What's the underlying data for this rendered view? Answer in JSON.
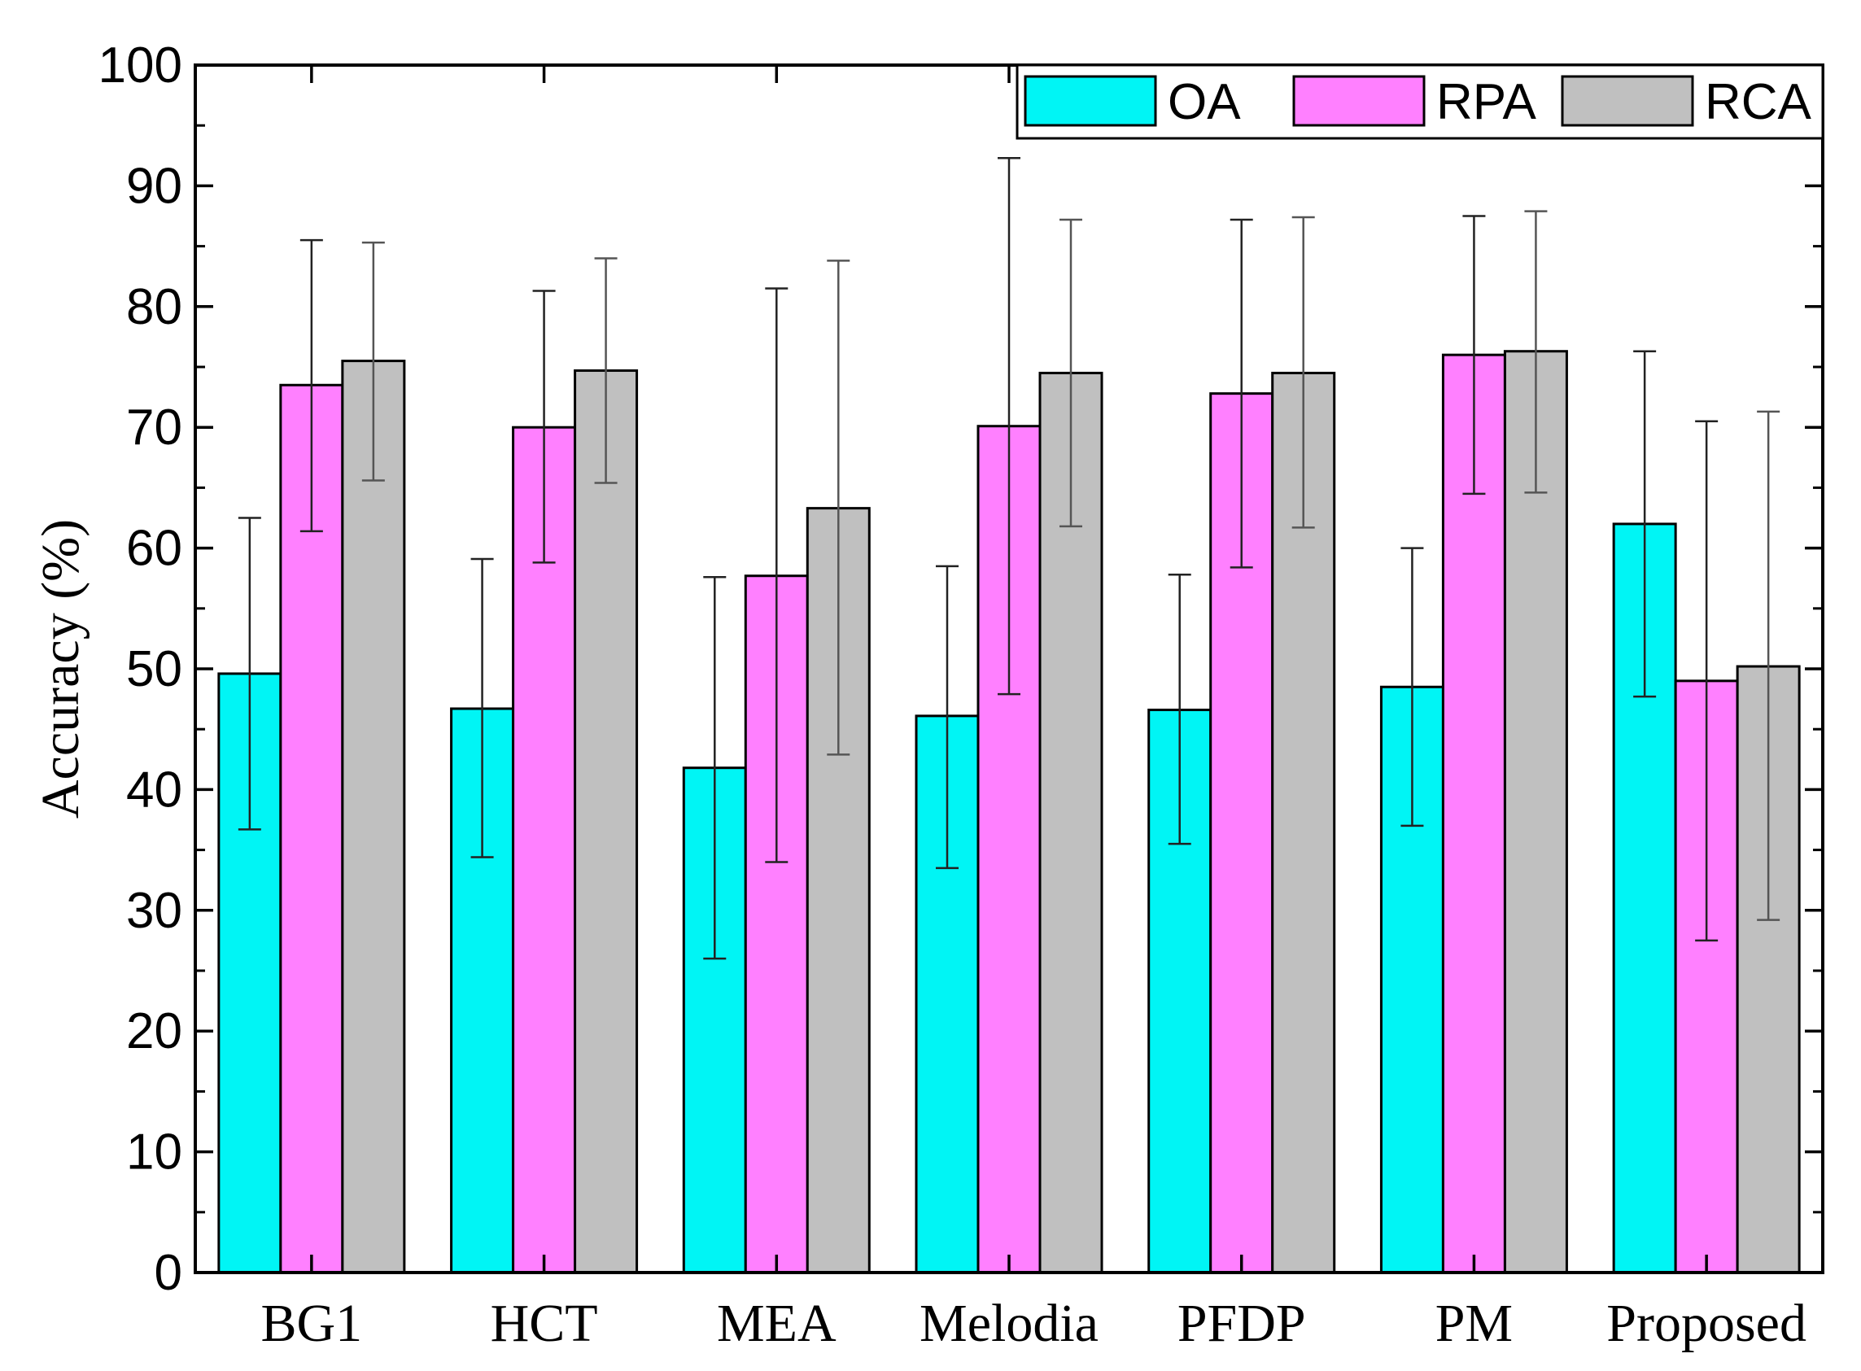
{
  "chart_data": {
    "type": "bar",
    "title": "",
    "xlabel": "",
    "ylabel": "Accuracy (%)",
    "ylim": [
      0,
      100
    ],
    "yticks": [
      "0",
      "10",
      "20",
      "30",
      "40",
      "50",
      "60",
      "70",
      "80",
      "90",
      "100"
    ],
    "categories": [
      "BG1",
      "HCT",
      "MEA",
      "Melodia",
      "PFDP",
      "PM",
      "Proposed"
    ],
    "series": [
      {
        "name": "OA",
        "color": "#00f5f5",
        "values": [
          49.6,
          46.7,
          41.8,
          46.1,
          46.6,
          48.5,
          62.0
        ],
        "err_low": [
          36.7,
          34.4,
          26.0,
          33.5,
          35.5,
          37.0,
          47.7
        ],
        "err_high": [
          62.5,
          59.1,
          57.6,
          58.5,
          57.8,
          60.0,
          76.3
        ]
      },
      {
        "name": "RPA",
        "color": "#ff80ff",
        "values": [
          73.5,
          70.0,
          57.7,
          70.1,
          72.8,
          76.0,
          49.0
        ],
        "err_low": [
          61.4,
          58.8,
          34.0,
          47.9,
          58.4,
          64.5,
          27.5
        ],
        "err_high": [
          85.5,
          81.3,
          81.5,
          92.3,
          87.2,
          87.5,
          70.5
        ]
      },
      {
        "name": "RCA",
        "color": "#c0c0c0",
        "values": [
          75.5,
          74.7,
          63.3,
          74.5,
          74.5,
          76.3,
          50.2
        ],
        "err_low": [
          65.6,
          65.4,
          42.9,
          61.8,
          61.7,
          64.6,
          29.2
        ],
        "err_high": [
          85.3,
          84.0,
          83.8,
          87.2,
          87.4,
          87.9,
          71.3
        ]
      }
    ],
    "legend": {
      "position": "top-right",
      "entries": [
        "OA",
        "RPA",
        "RCA"
      ]
    }
  }
}
